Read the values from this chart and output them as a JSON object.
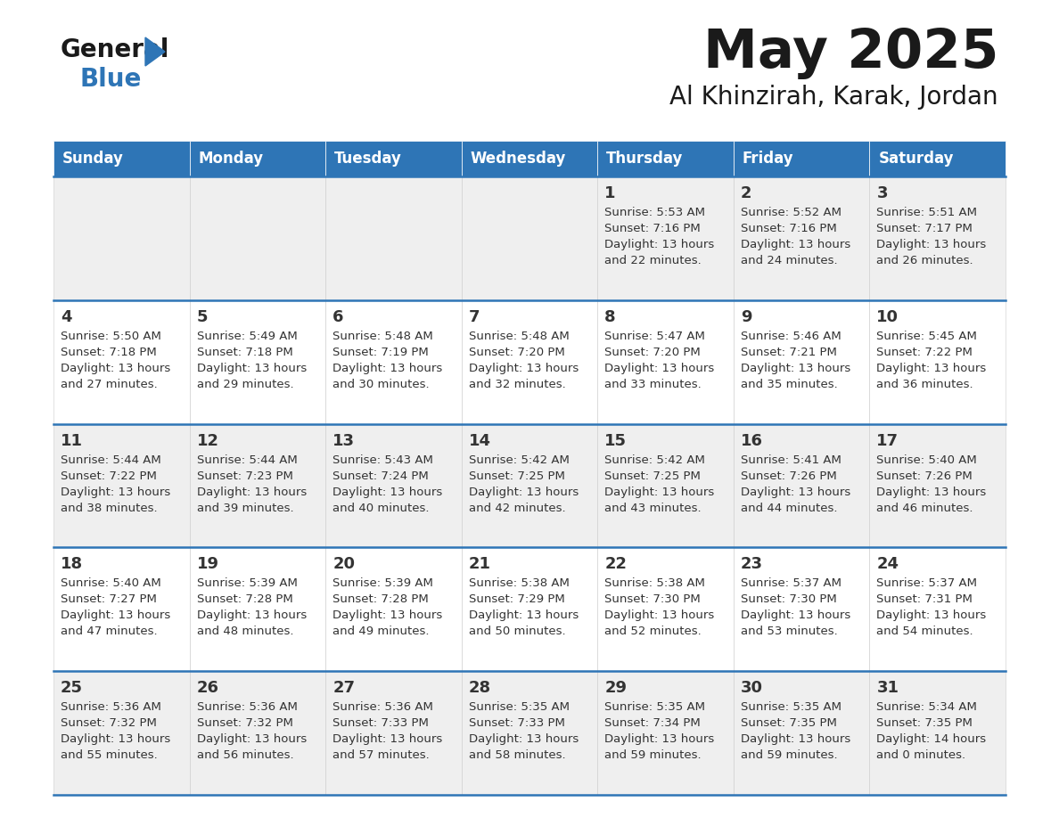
{
  "title": "May 2025",
  "subtitle": "Al Khinzirah, Karak, Jordan",
  "days_of_week": [
    "Sunday",
    "Monday",
    "Tuesday",
    "Wednesday",
    "Thursday",
    "Friday",
    "Saturday"
  ],
  "header_bg": "#2E75B6",
  "header_text": "#FFFFFF",
  "cell_bg_row0": "#EFEFEF",
  "cell_bg_row1": "#FFFFFF",
  "row_line_color": "#2E75B6",
  "text_color": "#333333",
  "calendar_data": [
    [
      null,
      null,
      null,
      null,
      {
        "day": 1,
        "sunrise": "5:53 AM",
        "sunset": "7:16 PM",
        "daylight": "13 hours",
        "daylight2": "and 22 minutes."
      },
      {
        "day": 2,
        "sunrise": "5:52 AM",
        "sunset": "7:16 PM",
        "daylight": "13 hours",
        "daylight2": "and 24 minutes."
      },
      {
        "day": 3,
        "sunrise": "5:51 AM",
        "sunset": "7:17 PM",
        "daylight": "13 hours",
        "daylight2": "and 26 minutes."
      }
    ],
    [
      {
        "day": 4,
        "sunrise": "5:50 AM",
        "sunset": "7:18 PM",
        "daylight": "13 hours",
        "daylight2": "and 27 minutes."
      },
      {
        "day": 5,
        "sunrise": "5:49 AM",
        "sunset": "7:18 PM",
        "daylight": "13 hours",
        "daylight2": "and 29 minutes."
      },
      {
        "day": 6,
        "sunrise": "5:48 AM",
        "sunset": "7:19 PM",
        "daylight": "13 hours",
        "daylight2": "and 30 minutes."
      },
      {
        "day": 7,
        "sunrise": "5:48 AM",
        "sunset": "7:20 PM",
        "daylight": "13 hours",
        "daylight2": "and 32 minutes."
      },
      {
        "day": 8,
        "sunrise": "5:47 AM",
        "sunset": "7:20 PM",
        "daylight": "13 hours",
        "daylight2": "and 33 minutes."
      },
      {
        "day": 9,
        "sunrise": "5:46 AM",
        "sunset": "7:21 PM",
        "daylight": "13 hours",
        "daylight2": "and 35 minutes."
      },
      {
        "day": 10,
        "sunrise": "5:45 AM",
        "sunset": "7:22 PM",
        "daylight": "13 hours",
        "daylight2": "and 36 minutes."
      }
    ],
    [
      {
        "day": 11,
        "sunrise": "5:44 AM",
        "sunset": "7:22 PM",
        "daylight": "13 hours",
        "daylight2": "and 38 minutes."
      },
      {
        "day": 12,
        "sunrise": "5:44 AM",
        "sunset": "7:23 PM",
        "daylight": "13 hours",
        "daylight2": "and 39 minutes."
      },
      {
        "day": 13,
        "sunrise": "5:43 AM",
        "sunset": "7:24 PM",
        "daylight": "13 hours",
        "daylight2": "and 40 minutes."
      },
      {
        "day": 14,
        "sunrise": "5:42 AM",
        "sunset": "7:25 PM",
        "daylight": "13 hours",
        "daylight2": "and 42 minutes."
      },
      {
        "day": 15,
        "sunrise": "5:42 AM",
        "sunset": "7:25 PM",
        "daylight": "13 hours",
        "daylight2": "and 43 minutes."
      },
      {
        "day": 16,
        "sunrise": "5:41 AM",
        "sunset": "7:26 PM",
        "daylight": "13 hours",
        "daylight2": "and 44 minutes."
      },
      {
        "day": 17,
        "sunrise": "5:40 AM",
        "sunset": "7:26 PM",
        "daylight": "13 hours",
        "daylight2": "and 46 minutes."
      }
    ],
    [
      {
        "day": 18,
        "sunrise": "5:40 AM",
        "sunset": "7:27 PM",
        "daylight": "13 hours",
        "daylight2": "and 47 minutes."
      },
      {
        "day": 19,
        "sunrise": "5:39 AM",
        "sunset": "7:28 PM",
        "daylight": "13 hours",
        "daylight2": "and 48 minutes."
      },
      {
        "day": 20,
        "sunrise": "5:39 AM",
        "sunset": "7:28 PM",
        "daylight": "13 hours",
        "daylight2": "and 49 minutes."
      },
      {
        "day": 21,
        "sunrise": "5:38 AM",
        "sunset": "7:29 PM",
        "daylight": "13 hours",
        "daylight2": "and 50 minutes."
      },
      {
        "day": 22,
        "sunrise": "5:38 AM",
        "sunset": "7:30 PM",
        "daylight": "13 hours",
        "daylight2": "and 52 minutes."
      },
      {
        "day": 23,
        "sunrise": "5:37 AM",
        "sunset": "7:30 PM",
        "daylight": "13 hours",
        "daylight2": "and 53 minutes."
      },
      {
        "day": 24,
        "sunrise": "5:37 AM",
        "sunset": "7:31 PM",
        "daylight": "13 hours",
        "daylight2": "and 54 minutes."
      }
    ],
    [
      {
        "day": 25,
        "sunrise": "5:36 AM",
        "sunset": "7:32 PM",
        "daylight": "13 hours",
        "daylight2": "and 55 minutes."
      },
      {
        "day": 26,
        "sunrise": "5:36 AM",
        "sunset": "7:32 PM",
        "daylight": "13 hours",
        "daylight2": "and 56 minutes."
      },
      {
        "day": 27,
        "sunrise": "5:36 AM",
        "sunset": "7:33 PM",
        "daylight": "13 hours",
        "daylight2": "and 57 minutes."
      },
      {
        "day": 28,
        "sunrise": "5:35 AM",
        "sunset": "7:33 PM",
        "daylight": "13 hours",
        "daylight2": "and 58 minutes."
      },
      {
        "day": 29,
        "sunrise": "5:35 AM",
        "sunset": "7:34 PM",
        "daylight": "13 hours",
        "daylight2": "and 59 minutes."
      },
      {
        "day": 30,
        "sunrise": "5:35 AM",
        "sunset": "7:35 PM",
        "daylight": "13 hours",
        "daylight2": "and 59 minutes."
      },
      {
        "day": 31,
        "sunrise": "5:34 AM",
        "sunset": "7:35 PM",
        "daylight": "14 hours",
        "daylight2": "and 0 minutes."
      }
    ]
  ]
}
